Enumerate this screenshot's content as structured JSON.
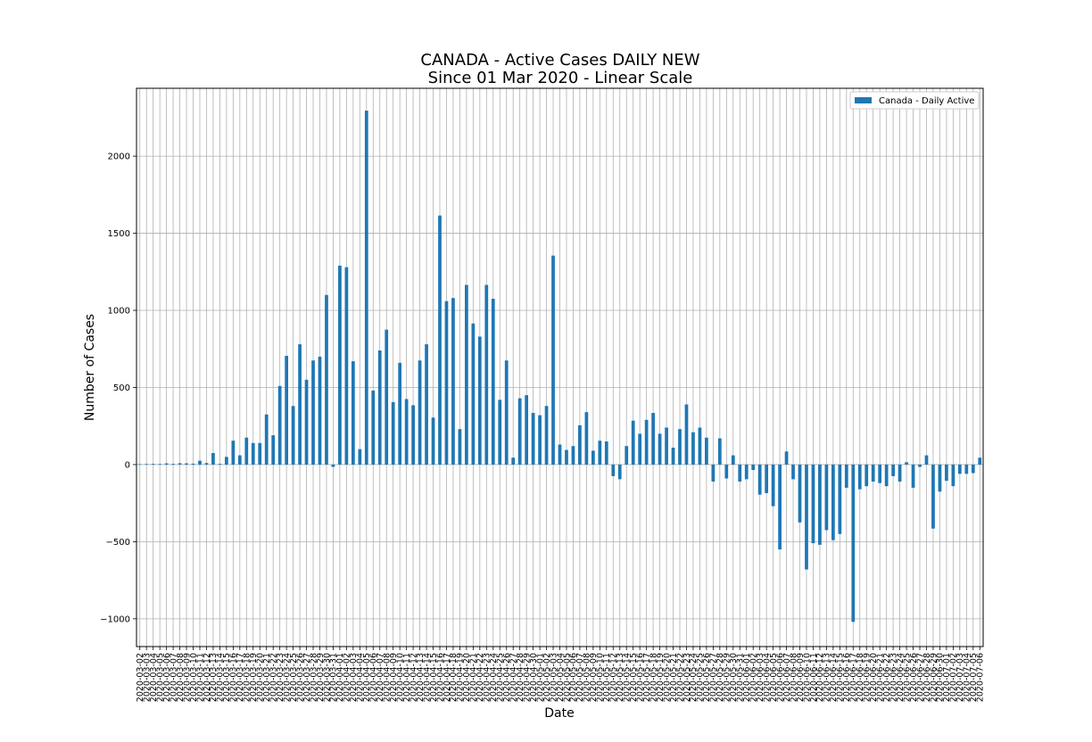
{
  "chart_data": {
    "type": "bar",
    "title": "CANADA - Active Cases DAILY NEW",
    "subtitle": "Since 01 Mar 2020 - Linear Scale",
    "xlabel": "Date",
    "ylabel": "Number of Cases",
    "ylim": [
      -1180,
      2440
    ],
    "yticks": [
      -1000,
      -500,
      0,
      500,
      1000,
      1500,
      2000
    ],
    "ytick_labels": [
      "−1000",
      "−500",
      "0",
      "500",
      "1000",
      "1500",
      "2000"
    ],
    "grid": true,
    "legend_position": "top-right",
    "colors": {
      "bar": "#1f77b4"
    },
    "categories": [
      "2020-03-02",
      "2020-03-03",
      "2020-03-04",
      "2020-03-05",
      "2020-03-06",
      "2020-03-07",
      "2020-03-08",
      "2020-03-09",
      "2020-03-10",
      "2020-03-11",
      "2020-03-12",
      "2020-03-13",
      "2020-03-14",
      "2020-03-15",
      "2020-03-16",
      "2020-03-17",
      "2020-03-18",
      "2020-03-19",
      "2020-03-20",
      "2020-03-21",
      "2020-03-22",
      "2020-03-23",
      "2020-03-24",
      "2020-03-25",
      "2020-03-26",
      "2020-03-27",
      "2020-03-28",
      "2020-03-29",
      "2020-03-30",
      "2020-03-31",
      "2020-04-01",
      "2020-04-02",
      "2020-04-03",
      "2020-04-04",
      "2020-04-05",
      "2020-04-06",
      "2020-04-07",
      "2020-04-08",
      "2020-04-09",
      "2020-04-10",
      "2020-04-11",
      "2020-04-12",
      "2020-04-13",
      "2020-04-14",
      "2020-04-15",
      "2020-04-16",
      "2020-04-17",
      "2020-04-18",
      "2020-04-19",
      "2020-04-20",
      "2020-04-21",
      "2020-04-22",
      "2020-04-23",
      "2020-04-24",
      "2020-04-25",
      "2020-04-26",
      "2020-04-27",
      "2020-04-28",
      "2020-04-29",
      "2020-04-30",
      "2020-05-01",
      "2020-05-02",
      "2020-05-03",
      "2020-05-04",
      "2020-05-05",
      "2020-05-06",
      "2020-05-07",
      "2020-05-08",
      "2020-05-09",
      "2020-05-10",
      "2020-05-11",
      "2020-05-12",
      "2020-05-13",
      "2020-05-14",
      "2020-05-15",
      "2020-05-16",
      "2020-05-17",
      "2020-05-18",
      "2020-05-19",
      "2020-05-20",
      "2020-05-21",
      "2020-05-22",
      "2020-05-23",
      "2020-05-24",
      "2020-05-25",
      "2020-05-26",
      "2020-05-27",
      "2020-05-28",
      "2020-05-29",
      "2020-05-30",
      "2020-05-31",
      "2020-06-01",
      "2020-06-02",
      "2020-06-03",
      "2020-06-04",
      "2020-06-05",
      "2020-06-06",
      "2020-06-07",
      "2020-06-08",
      "2020-06-09",
      "2020-06-10",
      "2020-06-11",
      "2020-06-12",
      "2020-06-13",
      "2020-06-14",
      "2020-06-15",
      "2020-06-16",
      "2020-06-17",
      "2020-06-18",
      "2020-06-19",
      "2020-06-20",
      "2020-06-21",
      "2020-06-22",
      "2020-06-23",
      "2020-06-24",
      "2020-06-25",
      "2020-06-26",
      "2020-06-27",
      "2020-06-28",
      "2020-06-29",
      "2020-06-30",
      "2020-07-01",
      "2020-07-02",
      "2020-07-03",
      "2020-07-04",
      "2020-07-05",
      "2020-07-06"
    ],
    "series": [
      {
        "name": "Canada - Daily Active",
        "values": [
          3,
          4,
          5,
          4,
          8,
          5,
          9,
          8,
          6,
          25,
          10,
          75,
          5,
          50,
          155,
          60,
          175,
          140,
          140,
          325,
          190,
          510,
          705,
          380,
          780,
          550,
          675,
          700,
          1100,
          -15,
          1290,
          1280,
          670,
          100,
          2295,
          480,
          740,
          875,
          405,
          660,
          425,
          385,
          675,
          780,
          305,
          1615,
          1060,
          1080,
          230,
          1165,
          915,
          830,
          1165,
          1075,
          420,
          675,
          45,
          430,
          450,
          335,
          320,
          380,
          1355,
          130,
          95,
          120,
          255,
          340,
          90,
          155,
          150,
          -75,
          -95,
          120,
          285,
          200,
          290,
          335,
          200,
          240,
          110,
          230,
          390,
          210,
          240,
          175,
          -110,
          170,
          -90,
          60,
          -110,
          -95,
          -35,
          -195,
          -185,
          -270,
          -550,
          85,
          -95,
          -375,
          -680,
          -510,
          -520,
          -425,
          -490,
          -450,
          -150,
          -1020,
          -160,
          -140,
          -110,
          -120,
          -140,
          -75,
          -110,
          15,
          -150,
          -15,
          60,
          -415,
          -175,
          -105,
          -140,
          -60,
          -60,
          -55,
          45
        ]
      }
    ]
  }
}
